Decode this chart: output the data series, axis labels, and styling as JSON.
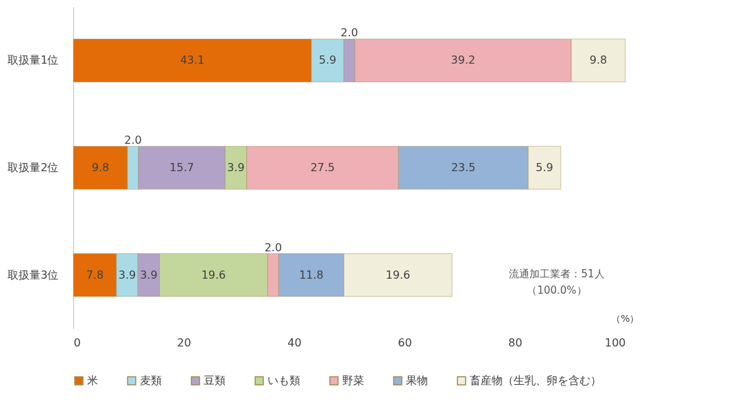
{
  "chart_data": {
    "type": "bar",
    "orientation": "horizontal",
    "stacked": true,
    "categories": [
      "取扱量1位",
      "取扱量2位",
      "取扱量3位"
    ],
    "series": [
      {
        "name": "米",
        "color": "#e36c09",
        "values": [
          43.1,
          9.8,
          7.8
        ],
        "value_labels": [
          "43.1",
          "9.8",
          "7.8"
        ]
      },
      {
        "name": "麦類",
        "color": "#a8dbe6",
        "values": [
          5.9,
          2.0,
          3.9
        ],
        "value_labels": [
          "5.9",
          "2.0",
          "3.9"
        ]
      },
      {
        "name": "豆類",
        "color": "#b3a2c7",
        "values": [
          2.0,
          15.7,
          3.9
        ],
        "value_labels": [
          "2.0",
          "15.7",
          "3.9"
        ]
      },
      {
        "name": "いも類",
        "color": "#c3d69b",
        "values": [
          null,
          3.9,
          19.6
        ],
        "value_labels": [
          null,
          "3.9",
          "19.6"
        ]
      },
      {
        "name": "野菜",
        "color": "#eeb0b4",
        "values": [
          39.2,
          27.5,
          2.0
        ],
        "value_labels": [
          "39.2",
          "27.5",
          "2.0"
        ]
      },
      {
        "name": "果物",
        "color": "#95b3d7",
        "values": [
          null,
          23.5,
          11.8
        ],
        "value_labels": [
          null,
          "23.5",
          "11.8"
        ]
      },
      {
        "name": "畜産物（生乳、卵を含む）",
        "color": "#f2eedc",
        "values": [
          9.8,
          5.9,
          19.6
        ],
        "value_labels": [
          "9.8",
          "5.9",
          "19.6"
        ]
      }
    ],
    "xlim": [
      0,
      100
    ],
    "xticks": [
      0,
      20,
      40,
      60,
      80,
      100
    ],
    "xlabel": "（%）",
    "legend": "bottom",
    "grid": false,
    "annotations": [
      "流通加工業者：51人",
      "（100.0%）"
    ]
  }
}
